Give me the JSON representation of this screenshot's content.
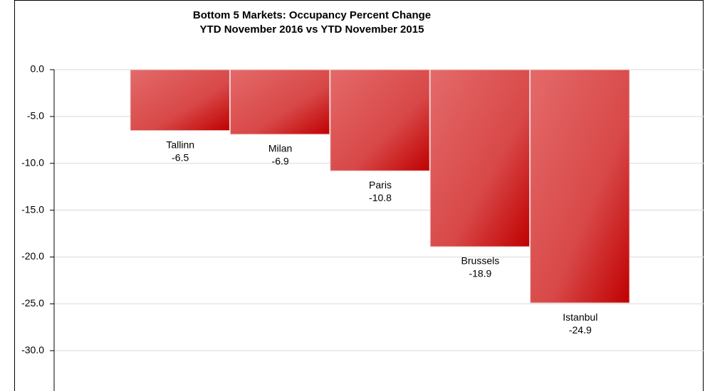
{
  "chart_data": {
    "type": "bar",
    "title": "Bottom 5 Markets: Occupancy Percent Change",
    "subtitle": "YTD November 2016 vs YTD November 2015",
    "categories": [
      "Tallinn",
      "Milan",
      "Paris",
      "Brussels",
      "Istanbul"
    ],
    "values": [
      -6.5,
      -6.9,
      -10.8,
      -18.9,
      -24.9
    ],
    "color": "#c00000",
    "ylim": [
      -34,
      0
    ],
    "yticks": [
      {
        "value": 0,
        "label": "0.0"
      },
      {
        "value": -5,
        "label": "-5.0"
      },
      {
        "value": -10,
        "label": "-10.0"
      },
      {
        "value": -15,
        "label": "-15.0"
      },
      {
        "value": -20,
        "label": "-20.0"
      },
      {
        "value": -25,
        "label": "-25.0"
      },
      {
        "value": -30,
        "label": "-30.0"
      }
    ],
    "grid": true
  }
}
